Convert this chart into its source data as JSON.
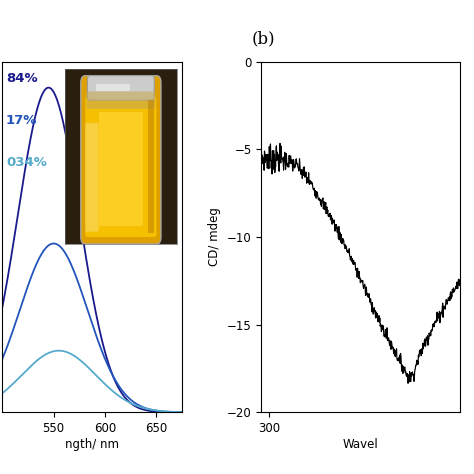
{
  "panel_b_label": "(b)",
  "left_panel": {
    "xlabel_partial": "ngth/ nm",
    "xlim": [
      500,
      675
    ],
    "x_ticks": [
      550,
      600,
      650
    ],
    "ylim": [
      0,
      1.08
    ],
    "legend_labels": [
      "84%",
      "17%",
      "034%"
    ],
    "legend_colors_text": [
      "#1a1a8c",
      "#2255bb",
      "#55aacc"
    ],
    "curve1_color": "#1a1a8c",
    "curve2_color": "#2255bb",
    "curve3_color": "#55aacc",
    "curve1_peak": 545,
    "curve1_sigma": 30,
    "curve1_amp": 1.0,
    "curve2_peak": 550,
    "curve2_sigma": 33,
    "curve2_amp": 0.52,
    "curve3_peak": 555,
    "curve3_sigma": 36,
    "curve3_amp": 0.19
  },
  "right_panel": {
    "ylabel": "CD/ mdeg",
    "xlabel_partial": "Wavel",
    "xlim": [
      295,
      420
    ],
    "x_ticks": [
      300
    ],
    "ylim": [
      -20,
      0
    ],
    "y_ticks": [
      0,
      -5,
      -10,
      -15,
      -20
    ],
    "cd_line_color": "#000000"
  },
  "background_color": "#ffffff"
}
